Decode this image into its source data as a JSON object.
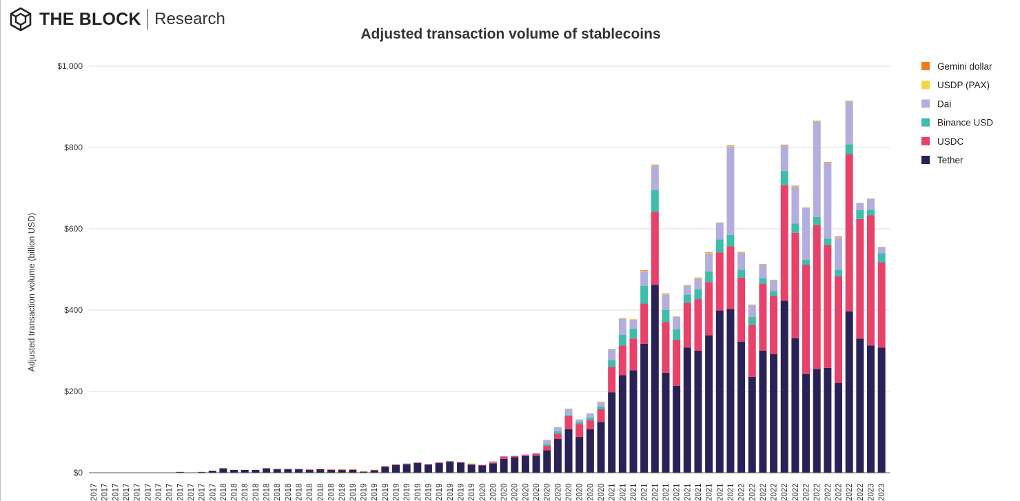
{
  "logo": {
    "brand": "THE BLOCK",
    "sub": "Research"
  },
  "chart_data": {
    "type": "bar",
    "stacked": true,
    "title": "Adjusted transaction volume of stablecoins",
    "xlabel": "",
    "ylabel": "Adjusted transaction volume (billion USD)",
    "ylim": [
      0,
      1000
    ],
    "yticks": [
      0,
      200,
      400,
      600,
      800,
      1000
    ],
    "ytick_labels": [
      "$0",
      "$200",
      "$400",
      "$600",
      "$800",
      "$1,000"
    ],
    "grid": true,
    "legend_position": "right",
    "categories": [
      "2017",
      "2017",
      "2017",
      "2017",
      "2017",
      "2017",
      "2017",
      "2017",
      "2017",
      "2017",
      "2017",
      "2017",
      "2018",
      "2018",
      "2018",
      "2018",
      "2018",
      "2018",
      "2018",
      "2018",
      "2018",
      "2018",
      "2018",
      "2018",
      "2019",
      "2019",
      "2019",
      "2019",
      "2019",
      "2019",
      "2019",
      "2019",
      "2019",
      "2019",
      "2019",
      "2019",
      "2020",
      "2020",
      "2020",
      "2020",
      "2020",
      "2020",
      "2020",
      "2020",
      "2020",
      "2020",
      "2020",
      "2020",
      "2021",
      "2021",
      "2021",
      "2021",
      "2021",
      "2021",
      "2021",
      "2021",
      "2021",
      "2021",
      "2021",
      "2021",
      "2022",
      "2022",
      "2022",
      "2022",
      "2022",
      "2022",
      "2022",
      "2022",
      "2022",
      "2022",
      "2022",
      "2022",
      "2023",
      "2023"
    ],
    "series": [
      {
        "name": "Tether",
        "color": "#2a2257",
        "values": [
          0,
          0,
          0,
          0,
          0,
          0,
          0,
          0,
          2,
          0,
          2,
          5,
          11,
          7,
          7,
          7,
          11,
          9,
          9,
          9,
          7,
          9,
          7,
          7,
          7,
          3,
          6,
          15,
          19,
          21,
          24,
          20,
          24,
          27,
          25,
          20,
          18,
          23,
          34,
          38,
          41,
          42,
          55,
          83,
          107,
          88,
          107,
          125,
          198,
          240,
          252,
          317,
          462,
          246,
          214,
          308,
          300,
          338,
          399,
          403,
          322,
          236,
          300,
          292,
          423,
          331,
          243,
          255,
          258,
          221,
          397,
          330,
          313,
          308
        ]
      },
      {
        "name": "USDC",
        "color": "#e8416a",
        "values": [
          0,
          0,
          0,
          0,
          0,
          0,
          0,
          0,
          0,
          0,
          0,
          0,
          0,
          0,
          0,
          0,
          0,
          0,
          0,
          0,
          1,
          0,
          1,
          1,
          1,
          0,
          1,
          1,
          1,
          1,
          1,
          1,
          1,
          1,
          1,
          1,
          1,
          2,
          6,
          3,
          3,
          5,
          11,
          13,
          32,
          32,
          22,
          31,
          62,
          73,
          78,
          99,
          180,
          125,
          113,
          110,
          127,
          131,
          143,
          154,
          158,
          128,
          165,
          143,
          284,
          259,
          268,
          354,
          302,
          262,
          386,
          294,
          320,
          209
        ]
      },
      {
        "name": "Binance USD",
        "color": "#3dbdaa",
        "values": [
          0,
          0,
          0,
          0,
          0,
          0,
          0,
          0,
          0,
          0,
          0,
          0,
          0,
          0,
          0,
          0,
          0,
          0,
          0,
          0,
          0,
          0,
          0,
          0,
          0,
          0,
          0,
          0,
          0,
          0,
          0,
          0,
          0,
          1,
          0,
          0,
          0,
          0,
          0,
          0,
          0,
          0,
          4,
          6,
          3,
          5,
          7,
          7,
          17,
          26,
          24,
          44,
          53,
          29,
          26,
          20,
          24,
          26,
          32,
          28,
          19,
          19,
          13,
          12,
          35,
          23,
          13,
          20,
          16,
          16,
          25,
          22,
          14,
          23
        ]
      },
      {
        "name": "Dai",
        "color": "#b3aedd",
        "values": [
          0,
          0,
          0,
          0,
          0,
          0,
          0,
          0,
          0,
          0,
          0,
          0,
          0,
          0,
          0,
          0,
          0,
          0,
          0,
          0,
          0,
          0,
          0,
          0,
          0,
          0,
          0,
          0,
          1,
          1,
          1,
          1,
          1,
          0,
          1,
          1,
          1,
          3,
          1,
          1,
          1,
          2,
          11,
          10,
          15,
          6,
          10,
          11,
          27,
          40,
          22,
          35,
          60,
          38,
          31,
          23,
          26,
          44,
          41,
          218,
          42,
          30,
          33,
          27,
          63,
          91,
          128,
          235,
          186,
          80,
          105,
          17,
          27,
          15
        ]
      },
      {
        "name": "USDP (PAX)",
        "color": "#f5d547",
        "values": [
          0,
          0,
          0,
          0,
          0,
          0,
          0,
          0,
          0,
          0,
          0,
          0,
          0,
          0,
          0,
          0,
          0,
          0,
          0,
          0,
          0,
          1,
          1,
          1,
          2,
          1,
          1,
          0,
          1,
          0,
          0,
          0,
          0,
          0,
          0,
          1,
          0,
          1,
          0,
          0,
          0,
          0,
          0,
          0,
          1,
          0,
          0,
          1,
          1,
          2,
          2,
          2,
          2,
          2,
          1,
          1,
          2,
          2,
          1,
          1,
          1,
          1,
          1,
          1,
          1,
          1,
          1,
          1,
          1,
          1,
          1,
          1,
          1,
          1
        ]
      },
      {
        "name": "Gemini dollar",
        "color": "#f07b1c",
        "values": [
          0,
          0,
          0,
          0,
          0,
          0,
          0,
          0,
          0,
          0,
          0,
          0,
          0,
          0,
          0,
          0,
          0,
          0,
          0,
          0,
          0,
          0,
          0,
          0,
          0,
          0,
          0,
          0,
          0,
          0,
          0,
          0,
          0,
          0,
          0,
          0,
          0,
          0,
          0,
          0,
          0,
          0,
          0,
          0,
          0,
          0,
          0,
          0,
          0,
          0,
          0,
          1,
          1,
          1,
          0,
          0,
          1,
          1,
          0,
          1,
          1,
          0,
          1,
          0,
          1,
          1,
          0,
          1,
          1,
          1,
          1,
          0,
          0,
          0
        ]
      }
    ],
    "legend_order": [
      "Gemini dollar",
      "USDP (PAX)",
      "Dai",
      "Binance USD",
      "USDC",
      "Tether"
    ]
  }
}
